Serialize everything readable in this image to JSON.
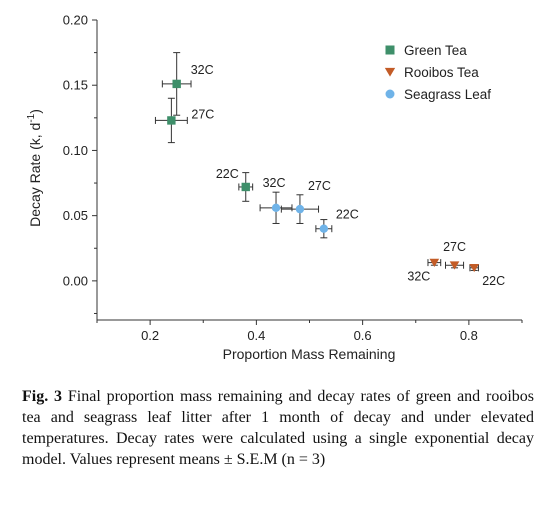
{
  "chart_data": {
    "type": "scatter",
    "xlabel": "Proportion Mass Remaining",
    "ylabel": "Decay Rate (k, d",
    "ylabel_sup": "-1",
    "ylabel_close": ")",
    "xlim": [
      0.1,
      0.9
    ],
    "ylim": [
      -0.03,
      0.2
    ],
    "xticks": [
      0.2,
      0.4,
      0.6,
      0.8
    ],
    "xtick_labels": [
      "0.2",
      "0.4",
      "0.6",
      "0.8"
    ],
    "yticks": [
      0.0,
      0.05,
      0.1,
      0.15,
      0.2
    ],
    "ytick_labels": [
      "0.00",
      "0.05",
      "0.10",
      "0.15",
      "0.20"
    ],
    "legend_position": "top-right",
    "series": [
      {
        "name": "Green Tea",
        "marker": "square",
        "color": "#3e8f6a",
        "points": [
          {
            "x": 0.25,
            "y": 0.151,
            "xerr": 0.027,
            "yerr": 0.024,
            "label": "32C"
          },
          {
            "x": 0.24,
            "y": 0.123,
            "xerr": 0.03,
            "yerr": 0.017,
            "label": "27C"
          },
          {
            "x": 0.38,
            "y": 0.072,
            "xerr": 0.013,
            "yerr": 0.011,
            "label": "22C"
          }
        ]
      },
      {
        "name": "Rooibos Tea",
        "marker": "triangle-down",
        "color": "#c35c27",
        "points": [
          {
            "x": 0.735,
            "y": 0.014,
            "xerr": 0.012,
            "yerr": 0.002,
            "label": "32C"
          },
          {
            "x": 0.773,
            "y": 0.012,
            "xerr": 0.017,
            "yerr": 0.002,
            "label": "27C"
          },
          {
            "x": 0.81,
            "y": 0.01,
            "xerr": 0.008,
            "yerr": 0.002,
            "label": "22C"
          }
        ]
      },
      {
        "name": "Seagrass Leaf",
        "marker": "circle",
        "color": "#6fb3e8",
        "points": [
          {
            "x": 0.437,
            "y": 0.056,
            "xerr": 0.03,
            "yerr": 0.012,
            "label": "32C"
          },
          {
            "x": 0.482,
            "y": 0.055,
            "xerr": 0.035,
            "yerr": 0.011,
            "label": "27C"
          },
          {
            "x": 0.527,
            "y": 0.04,
            "xerr": 0.015,
            "yerr": 0.007,
            "label": "22C"
          }
        ]
      }
    ]
  },
  "caption": {
    "label": "Fig. 3",
    "text": " Final proportion mass remaining and decay rates of green and rooibos tea and seagrass leaf litter after 1 month of decay and under elevated temperatures. Decay rates were calculated using a single exponential decay model. Values represent means ± S.E.M (n = 3)"
  }
}
